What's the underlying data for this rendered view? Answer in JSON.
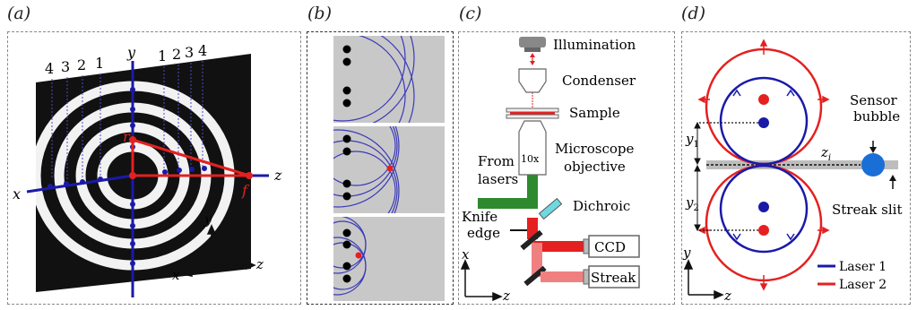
{
  "panels": {
    "a": {
      "label": "(a)",
      "axis_x": "x",
      "axis_y": "y",
      "axis_z": "z",
      "ring_numbers_left": [
        "4",
        "3",
        "2",
        "1"
      ],
      "ring_numbers_right": [
        "1",
        "2",
        "3",
        "4"
      ],
      "r_label": "r",
      "f_label": "f",
      "triad_x": "x",
      "triad_y": "y",
      "triad_z": "z"
    },
    "b": {
      "label": "(b)"
    },
    "c": {
      "label": "(c)",
      "illumination": "Illumination",
      "condenser": "Condenser",
      "sample": "Sample",
      "microscope_line1": "Microscope",
      "microscope_line2": "objective",
      "objective_mag": "10x",
      "from_line1": "From",
      "from_line2": "lasers",
      "dichroic": "Dichroic",
      "knife_line1": "Knife",
      "knife_line2": "edge",
      "ccd": "CCD",
      "streak": "Streak",
      "axis_x": "x",
      "axis_z": "z"
    },
    "d": {
      "label": "(d)",
      "sensor_line1": "Sensor",
      "sensor_line2": "bubble",
      "streak_slit": "Streak slit",
      "y1": "y",
      "y1_sub": "1",
      "y2": "y",
      "y2_sub": "2",
      "zi": "z",
      "zi_sub": "i",
      "axis_y": "y",
      "axis_z": "z",
      "legend": [
        {
          "name": "Laser 1",
          "color": "#1a1aa8"
        },
        {
          "name": "Laser 2",
          "color": "#e52020"
        }
      ]
    }
  },
  "colors": {
    "blue": "#1a1aa8",
    "red": "#e52020",
    "green": "#2f8a2f",
    "pink": "#f08080",
    "grey_panel": "#c8c8c8"
  }
}
